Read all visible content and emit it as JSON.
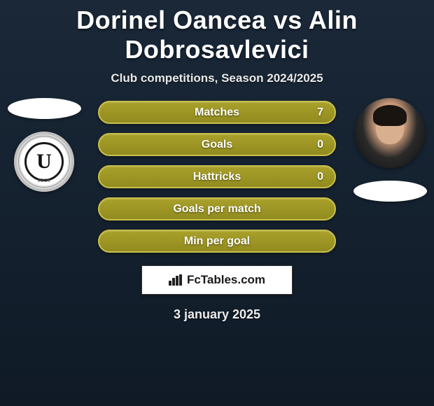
{
  "title": "Dorinel Oancea vs Alin Dobrosavlevici",
  "subtitle": "Club competitions, Season 2024/2025",
  "date_line": "3 january 2025",
  "brand": {
    "text": "FcTables.com"
  },
  "left_club": {
    "letter": "U",
    "year": "1919"
  },
  "colors": {
    "bar_fill_top": "#a9a12a",
    "bar_fill_bottom": "#918a1f",
    "bar_border": "#c9c04a",
    "background_top": "#1a2838",
    "background_bottom": "#0f1a26",
    "text": "#ffffff"
  },
  "stats": [
    {
      "label": "Matches",
      "right_value": "7"
    },
    {
      "label": "Goals",
      "right_value": "0"
    },
    {
      "label": "Hattricks",
      "right_value": "0"
    },
    {
      "label": "Goals per match",
      "right_value": ""
    },
    {
      "label": "Min per goal",
      "right_value": ""
    }
  ]
}
